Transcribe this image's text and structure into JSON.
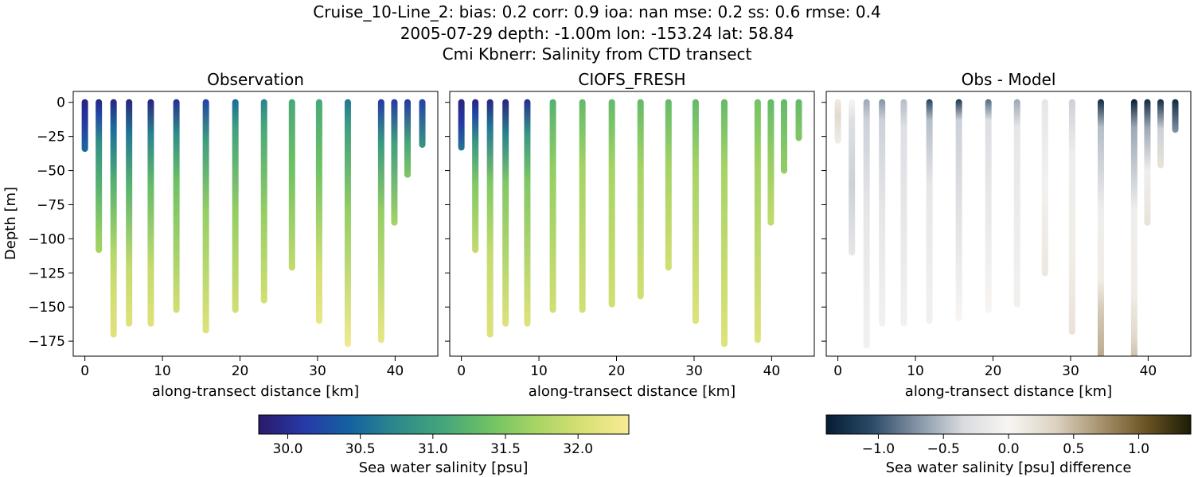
{
  "figure": {
    "title_lines": [
      "Cruise_10-Line_2: bias: 0.2  corr: 0.9  ioa: nan  mse: 0.2  ss: 0.6  rmse: 0.4",
      "2005-07-29 depth: -1.00m lon: -153.24 lat: 58.84",
      "Cmi Kbnerr: Salinity from CTD transect"
    ]
  },
  "chart_data": [
    {
      "type": "scatter",
      "title": "Observation",
      "xlabel": "along-transect distance [km]",
      "ylabel": "Depth [m]",
      "xlim": [
        -1.5,
        45.5
      ],
      "ylim": [
        -186,
        8
      ],
      "xticks": [
        0,
        10,
        20,
        30,
        40
      ],
      "xtick_labels": [
        "0",
        "10",
        "20",
        "30",
        "40"
      ],
      "yticks": [
        0,
        -25,
        -50,
        -75,
        -100,
        -125,
        -150,
        -175
      ],
      "ytick_labels": [
        "0",
        "−25",
        "−50",
        "−75",
        "−100",
        "−125",
        "−150",
        "−175"
      ],
      "colormap": "salinity",
      "casts": [
        {
          "x": 0.0,
          "bottom": -34,
          "stops": [
            [
              0,
              29.9
            ],
            [
              -15,
              30.1
            ],
            [
              -34,
              30.5
            ]
          ]
        },
        {
          "x": 1.8,
          "bottom": -108,
          "stops": [
            [
              0,
              29.9
            ],
            [
              -10,
              30.2
            ],
            [
              -30,
              30.8
            ],
            [
              -60,
              31.2
            ],
            [
              -95,
              31.6
            ],
            [
              -108,
              31.7
            ]
          ]
        },
        {
          "x": 3.7,
          "bottom": -170,
          "stops": [
            [
              0,
              29.9
            ],
            [
              -20,
              30.5
            ],
            [
              -60,
              31.2
            ],
            [
              -110,
              31.8
            ],
            [
              -140,
              32.0
            ],
            [
              -170,
              32.1
            ]
          ]
        },
        {
          "x": 5.7,
          "bottom": -162,
          "stops": [
            [
              0,
              29.9
            ],
            [
              -25,
              30.6
            ],
            [
              -60,
              31.2
            ],
            [
              -120,
              31.9
            ],
            [
              -162,
              32.1
            ]
          ]
        },
        {
          "x": 8.5,
          "bottom": -162,
          "stops": [
            [
              0,
              29.9
            ],
            [
              -25,
              30.7
            ],
            [
              -60,
              31.3
            ],
            [
              -120,
              31.9
            ],
            [
              -162,
              32.1
            ]
          ]
        },
        {
          "x": 11.8,
          "bottom": -152,
          "stops": [
            [
              0,
              30.0
            ],
            [
              -25,
              30.8
            ],
            [
              -60,
              31.4
            ],
            [
              -152,
              32.0
            ]
          ]
        },
        {
          "x": 15.6,
          "bottom": -167,
          "stops": [
            [
              0,
              30.2
            ],
            [
              -30,
              31.0
            ],
            [
              -80,
              31.6
            ],
            [
              -167,
              32.1
            ]
          ]
        },
        {
          "x": 19.4,
          "bottom": -152,
          "stops": [
            [
              0,
              30.5
            ],
            [
              -20,
              31.0
            ],
            [
              -80,
              31.6
            ],
            [
              -152,
              32.0
            ]
          ]
        },
        {
          "x": 23.1,
          "bottom": -145,
          "stops": [
            [
              0,
              30.7
            ],
            [
              -20,
              31.1
            ],
            [
              -80,
              31.6
            ],
            [
              -145,
              32.0
            ]
          ]
        },
        {
          "x": 26.7,
          "bottom": -121,
          "stops": [
            [
              0,
              31.1
            ],
            [
              -50,
              31.4
            ],
            [
              -121,
              31.9
            ]
          ]
        },
        {
          "x": 30.2,
          "bottom": -160,
          "stops": [
            [
              0,
              31.1
            ],
            [
              -50,
              31.4
            ],
            [
              -120,
              32.0
            ],
            [
              -160,
              32.2
            ]
          ]
        },
        {
          "x": 33.9,
          "bottom": -177,
          "stops": [
            [
              0,
              30.6
            ],
            [
              -20,
              31.0
            ],
            [
              -80,
              31.6
            ],
            [
              -177,
              32.3
            ]
          ]
        },
        {
          "x": 38.2,
          "bottom": -174,
          "stops": [
            [
              0,
              30.1
            ],
            [
              -30,
              30.9
            ],
            [
              -80,
              31.6
            ],
            [
              -174,
              32.2
            ]
          ]
        },
        {
          "x": 39.9,
          "bottom": -88,
          "stops": [
            [
              0,
              30.1
            ],
            [
              -30,
              31.0
            ],
            [
              -88,
              31.7
            ]
          ]
        },
        {
          "x": 41.6,
          "bottom": -53,
          "stops": [
            [
              0,
              30.1
            ],
            [
              -30,
              31.1
            ],
            [
              -53,
              31.5
            ]
          ]
        },
        {
          "x": 43.5,
          "bottom": -31,
          "stops": [
            [
              0,
              30.2
            ],
            [
              -31,
              30.9
            ]
          ]
        }
      ]
    },
    {
      "type": "scatter",
      "title": "CIOFS_FRESH",
      "xlabel": "along-transect distance [km]",
      "xlim": [
        -1.5,
        45.5
      ],
      "ylim": [
        -186,
        8
      ],
      "xticks": [
        0,
        10,
        20,
        30,
        40
      ],
      "xtick_labels": [
        "0",
        "10",
        "20",
        "30",
        "40"
      ],
      "yticks": [
        0,
        -25,
        -50,
        -75,
        -100,
        -125,
        -150,
        -175
      ],
      "colormap": "salinity",
      "casts": [
        {
          "x": 0.0,
          "bottom": -33,
          "stops": [
            [
              0,
              29.9
            ],
            [
              -15,
              30.1
            ],
            [
              -33,
              30.6
            ]
          ]
        },
        {
          "x": 1.8,
          "bottom": -108,
          "stops": [
            [
              0,
              29.9
            ],
            [
              -10,
              30.2
            ],
            [
              -30,
              30.9
            ],
            [
              -60,
              31.5
            ],
            [
              -108,
              31.9
            ]
          ]
        },
        {
          "x": 3.7,
          "bottom": -170,
          "stops": [
            [
              0,
              29.9
            ],
            [
              -20,
              30.6
            ],
            [
              -60,
              31.5
            ],
            [
              -110,
              31.9
            ],
            [
              -170,
              32.1
            ]
          ]
        },
        {
          "x": 5.7,
          "bottom": -162,
          "stops": [
            [
              0,
              29.9
            ],
            [
              -25,
              30.7
            ],
            [
              -60,
              31.5
            ],
            [
              -162,
              32.1
            ]
          ]
        },
        {
          "x": 8.5,
          "bottom": -162,
          "stops": [
            [
              0,
              30.0
            ],
            [
              -25,
              30.9
            ],
            [
              -60,
              31.5
            ],
            [
              -162,
              32.1
            ]
          ]
        },
        {
          "x": 11.8,
          "bottom": -152,
          "stops": [
            [
              0,
              31.2
            ],
            [
              -50,
              31.6
            ],
            [
              -152,
              32.0
            ]
          ]
        },
        {
          "x": 15.6,
          "bottom": -152,
          "stops": [
            [
              0,
              31.3
            ],
            [
              -50,
              31.7
            ],
            [
              -152,
              32.0
            ]
          ]
        },
        {
          "x": 19.4,
          "bottom": -148,
          "stops": [
            [
              0,
              31.3
            ],
            [
              -50,
              31.7
            ],
            [
              -148,
              32.0
            ]
          ]
        },
        {
          "x": 23.1,
          "bottom": -142,
          "stops": [
            [
              0,
              31.3
            ],
            [
              -50,
              31.7
            ],
            [
              -142,
              32.0
            ]
          ]
        },
        {
          "x": 26.7,
          "bottom": -121,
          "stops": [
            [
              0,
              31.3
            ],
            [
              -50,
              31.7
            ],
            [
              -121,
              32.0
            ]
          ]
        },
        {
          "x": 30.2,
          "bottom": -160,
          "stops": [
            [
              0,
              31.3
            ],
            [
              -50,
              31.7
            ],
            [
              -160,
              32.1
            ]
          ]
        },
        {
          "x": 33.9,
          "bottom": -177,
          "stops": [
            [
              0,
              31.3
            ],
            [
              -50,
              31.7
            ],
            [
              -177,
              32.1
            ]
          ]
        },
        {
          "x": 38.2,
          "bottom": -174,
          "stops": [
            [
              0,
              31.4
            ],
            [
              -50,
              31.7
            ],
            [
              -174,
              32.1
            ]
          ]
        },
        {
          "x": 39.9,
          "bottom": -88,
          "stops": [
            [
              0,
              31.3
            ],
            [
              -40,
              31.6
            ],
            [
              -88,
              31.9
            ]
          ]
        },
        {
          "x": 41.6,
          "bottom": -50,
          "stops": [
            [
              0,
              31.3
            ],
            [
              -50,
              31.6
            ]
          ]
        },
        {
          "x": 43.5,
          "bottom": -26,
          "stops": [
            [
              0,
              31.3
            ],
            [
              -26,
              31.5
            ]
          ]
        }
      ]
    },
    {
      "type": "scatter",
      "title": "Obs - Model",
      "xlabel": "along-transect distance [km]",
      "xlim": [
        -1.5,
        45.5
      ],
      "ylim": [
        -186,
        8
      ],
      "xticks": [
        0,
        10,
        20,
        30,
        40
      ],
      "xtick_labels": [
        "0",
        "10",
        "20",
        "30",
        "40"
      ],
      "yticks": [
        0,
        -25,
        -50,
        -75,
        -100,
        -125,
        -150,
        -175
      ],
      "colormap": "diff",
      "casts": [
        {
          "x": 0.0,
          "bottom": -28,
          "stops": [
            [
              0,
              0.1
            ],
            [
              -10,
              0.3
            ],
            [
              -28,
              -0.1
            ]
          ]
        },
        {
          "x": 1.8,
          "bottom": -110,
          "stops": [
            [
              0,
              0.0
            ],
            [
              -15,
              -0.3
            ],
            [
              -60,
              -0.4
            ],
            [
              -110,
              -0.2
            ]
          ]
        },
        {
          "x": 3.7,
          "bottom": -178,
          "stops": [
            [
              0,
              -0.6
            ],
            [
              -15,
              -0.4
            ],
            [
              -80,
              -0.2
            ],
            [
              -178,
              -0.05
            ]
          ]
        },
        {
          "x": 5.7,
          "bottom": -162,
          "stops": [
            [
              0,
              -0.7
            ],
            [
              -15,
              -0.4
            ],
            [
              -80,
              -0.2
            ],
            [
              -162,
              -0.05
            ]
          ]
        },
        {
          "x": 8.5,
          "bottom": -162,
          "stops": [
            [
              0,
              -0.5
            ],
            [
              -20,
              -0.3
            ],
            [
              -162,
              -0.05
            ]
          ]
        },
        {
          "x": 11.8,
          "bottom": -160,
          "stops": [
            [
              0,
              -1.1
            ],
            [
              -15,
              -0.5
            ],
            [
              -60,
              -0.2
            ],
            [
              -160,
              -0.05
            ]
          ]
        },
        {
          "x": 15.6,
          "bottom": -158,
          "stops": [
            [
              0,
              -1.2
            ],
            [
              -15,
              -0.4
            ],
            [
              -158,
              0.0
            ]
          ]
        },
        {
          "x": 19.4,
          "bottom": -152,
          "stops": [
            [
              0,
              -0.9
            ],
            [
              -15,
              -0.3
            ],
            [
              -152,
              0.0
            ]
          ]
        },
        {
          "x": 23.1,
          "bottom": -148,
          "stops": [
            [
              0,
              -0.6
            ],
            [
              -20,
              -0.2
            ],
            [
              -148,
              -0.05
            ]
          ]
        },
        {
          "x": 26.7,
          "bottom": -125,
          "stops": [
            [
              0,
              -0.2
            ],
            [
              -60,
              -0.05
            ],
            [
              -125,
              0.15
            ]
          ]
        },
        {
          "x": 30.2,
          "bottom": -168,
          "stops": [
            [
              0,
              -0.4
            ],
            [
              -40,
              -0.1
            ],
            [
              -120,
              0.1
            ],
            [
              -168,
              0.2
            ]
          ]
        },
        {
          "x": 33.9,
          "bottom": -190,
          "stops": [
            [
              0,
              -1.3
            ],
            [
              -20,
              -0.5
            ],
            [
              -80,
              -0.1
            ],
            [
              -130,
              0.1
            ],
            [
              -150,
              0.4
            ],
            [
              -190,
              0.6
            ]
          ]
        },
        {
          "x": 38.2,
          "bottom": -190,
          "stops": [
            [
              0,
              -1.4
            ],
            [
              -20,
              -0.6
            ],
            [
              -80,
              -0.1
            ],
            [
              -140,
              0.1
            ],
            [
              -170,
              0.3
            ],
            [
              -190,
              0.5
            ]
          ]
        },
        {
          "x": 39.9,
          "bottom": -88,
          "stops": [
            [
              0,
              -1.3
            ],
            [
              -20,
              -0.6
            ],
            [
              -50,
              -0.1
            ],
            [
              -88,
              0.2
            ]
          ]
        },
        {
          "x": 41.6,
          "bottom": -46,
          "stops": [
            [
              0,
              -1.3
            ],
            [
              -20,
              -0.4
            ],
            [
              -46,
              0.2
            ]
          ]
        },
        {
          "x": 43.5,
          "bottom": -20,
          "stops": [
            [
              0,
              -1.3
            ],
            [
              -20,
              -0.7
            ]
          ]
        }
      ]
    }
  ],
  "colorbars": [
    {
      "label": "Sea water salinity [psu]",
      "range": [
        29.8,
        32.35
      ],
      "ticks": [
        30.0,
        30.5,
        31.0,
        31.5,
        32.0
      ],
      "tick_labels": [
        "30.0",
        "30.5",
        "31.0",
        "31.5",
        "32.0"
      ],
      "colors": [
        "#2a1a6b",
        "#263aa8",
        "#1563a0",
        "#2d8a8a",
        "#45a67a",
        "#6fc263",
        "#a8d565",
        "#d8e074",
        "#f8eb95"
      ]
    },
    {
      "label": "Sea water salinity [psu] difference",
      "range": [
        -1.4,
        1.4
      ],
      "ticks": [
        -1.0,
        -0.5,
        0.0,
        0.5,
        1.0
      ],
      "tick_labels": [
        "−1.0",
        "−0.5",
        "0.0",
        "0.5",
        "1.0"
      ],
      "colors": [
        "#051d33",
        "#2b4a66",
        "#8494a5",
        "#d8dbe0",
        "#f8f5f2",
        "#ddd4c4",
        "#a89470",
        "#6b5524",
        "#1c1c05"
      ]
    }
  ]
}
